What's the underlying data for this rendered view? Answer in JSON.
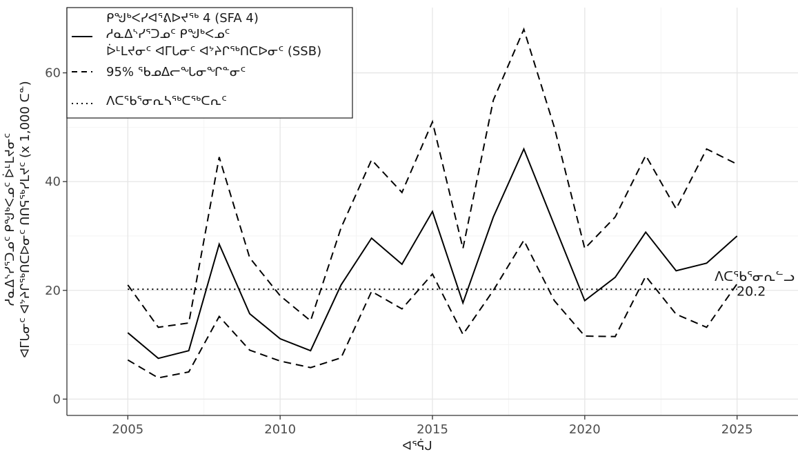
{
  "chart_data": {
    "type": "line",
    "xlabel": "ᐊᕐᕌᒍ",
    "ylabel_lines": [
      "ᓱᓇᐃᔅᓯᕐᑐᓄᑦ ᑭᖑᒃᐸᓄᑦ ᐆᒻᒪᔪᓂᑦ",
      "ᐊᒥᒐᓂᑦ ᐊᔾᔨᒋᖅᑎᑕᐅᓂᑦ ᑎᑎᕋᖅᓯᒪᔪᑦ (x 1,000 ᑕᓐ)"
    ],
    "xlim": [
      2003,
      2027
    ],
    "ylim": [
      -3,
      72
    ],
    "x_ticks": [
      2005,
      2010,
      2015,
      2020,
      2025
    ],
    "y_ticks": [
      0,
      20,
      40,
      60
    ],
    "grid": true,
    "legend_position": "top-left",
    "legend": {
      "title": "ᑭᖑᒃᐸᓯᐊᕐᕕᐅᔪᖅ 4 (SFA 4)",
      "entries": [
        {
          "key": "ssb",
          "linestyle": "solid",
          "lines": [
            "ᓱᓇᐃᔅᓯᕐᑐᓄᑦ ᑭᖑᒃᐸᓄᑦ",
            "ᐆᒻᒪᔪᓂᑦ ᐊᒥᒐᓂᑦ ᐊᔾᔨᒋᖅᑎᑕᐅᓂᑦ (SSB)"
          ]
        },
        {
          "key": "ci",
          "linestyle": "dashed",
          "lines": [
            "95% ᖃᓄᐃᓕᖓᓂᖏᓐᓂᑦ"
          ]
        },
        {
          "key": "ref",
          "linestyle": "dotted",
          "lines": [
            "ᐱᑕᖃᕐᓂᕆᓴᖅᑕᖅᑕᕆᑦ"
          ]
        }
      ]
    },
    "series": [
      {
        "name": "ssb",
        "linestyle": "solid",
        "x": [
          2005,
          2006,
          2007,
          2008,
          2009,
          2010,
          2011,
          2012,
          2013,
          2014,
          2015,
          2016,
          2017,
          2018,
          2019,
          2020,
          2021,
          2022,
          2023,
          2024,
          2025
        ],
        "y": [
          12.2,
          7.5,
          8.9,
          28.5,
          15.7,
          11.1,
          8.9,
          21.0,
          29.6,
          24.8,
          34.5,
          17.7,
          33.5,
          46.0,
          32.0,
          18.1,
          22.4,
          30.7,
          23.6,
          25.0,
          30.0
        ]
      },
      {
        "name": "ci-upper",
        "linestyle": "dashed",
        "x": [
          2005,
          2006,
          2007,
          2008,
          2009,
          2010,
          2011,
          2012,
          2013,
          2014,
          2015,
          2016,
          2017,
          2018,
          2019,
          2020,
          2021,
          2022,
          2023,
          2024,
          2025
        ],
        "y": [
          21.0,
          13.2,
          14.0,
          44.5,
          26.0,
          19.0,
          14.4,
          31.5,
          44.0,
          38.0,
          51.0,
          27.7,
          55.0,
          68.0,
          50.0,
          27.7,
          33.5,
          44.8,
          35.0,
          46.0,
          43.2
        ]
      },
      {
        "name": "ci-lower",
        "linestyle": "dashed",
        "x": [
          2005,
          2006,
          2007,
          2008,
          2009,
          2010,
          2011,
          2012,
          2013,
          2014,
          2015,
          2016,
          2017,
          2018,
          2019,
          2020,
          2021,
          2022,
          2023,
          2024,
          2025
        ],
        "y": [
          7.2,
          3.9,
          5.0,
          15.2,
          9.0,
          7.0,
          5.8,
          7.6,
          19.8,
          16.6,
          23.0,
          11.9,
          20.0,
          29.2,
          18.1,
          11.6,
          11.5,
          22.6,
          15.6,
          13.2,
          21.2
        ]
      }
    ],
    "reference_line": {
      "y": 20.2,
      "linestyle": "dotted",
      "label": "ᐱᑕᖃᕐᓂᕆᓪᓗ",
      "value_label": "20.2"
    }
  }
}
